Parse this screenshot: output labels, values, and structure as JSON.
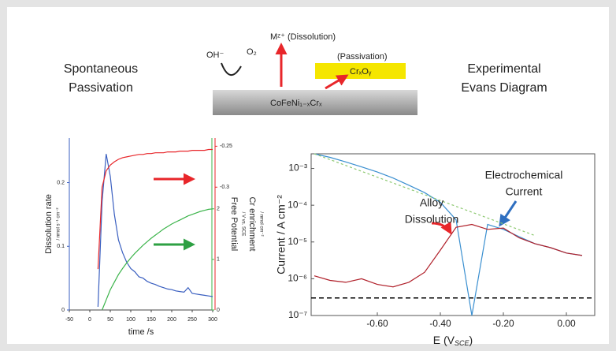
{
  "header": {
    "left_title": [
      "Spontaneous",
      "Passivation"
    ],
    "right_title": [
      "Experimental",
      "Evans Diagram"
    ]
  },
  "diagram": {
    "hydroxide": "OH⁻",
    "oxygen": "O₂",
    "dissolution": "Mᶻ⁺ (Dissolution)",
    "passivation": "(Passivation)",
    "oxide": "CrₓOᵧ",
    "alloy": "CoFeNi₁₋ₓCrₓ"
  },
  "chart_data": [
    {
      "type": "line",
      "xlabel": "time /s",
      "ylabel": "Dissolution rate",
      "ylabel_unit": "/ nmol s⁻¹ cm⁻²",
      "y2label": "Free Potential",
      "y2label_unit": "/ V vs. SCE",
      "y3label": "Cr enrichment",
      "y3label_unit": "/ nmol cm⁻²",
      "xlim": [
        -50,
        300
      ],
      "xticks": [
        -50,
        0,
        50,
        100,
        150,
        200,
        250,
        300
      ],
      "ylim": [
        0,
        0.27
      ],
      "yticks": [
        0,
        0.1,
        0.2
      ],
      "y2lim": [
        -0.45,
        -0.24
      ],
      "y2ticks": [
        -0.3,
        -0.25
      ],
      "y3lim": [
        0,
        3.4
      ],
      "y3ticks": [
        0,
        1,
        2
      ],
      "x": [
        -50,
        -40,
        -30,
        -20,
        -10,
        0,
        10,
        20,
        30,
        40,
        50,
        60,
        70,
        80,
        90,
        100,
        110,
        120,
        130,
        140,
        150,
        160,
        170,
        180,
        190,
        200,
        210,
        220,
        230,
        240,
        250,
        260,
        270,
        280,
        290,
        300
      ],
      "series": [
        {
          "axis": "y",
          "color": "#3a5fc0",
          "values": [
            null,
            null,
            null,
            null,
            null,
            null,
            null,
            0.005,
            0.17,
            0.245,
            0.21,
            0.15,
            0.11,
            0.09,
            0.075,
            0.065,
            0.06,
            0.052,
            0.05,
            0.045,
            0.042,
            0.04,
            0.037,
            0.035,
            0.033,
            0.032,
            0.03,
            0.029,
            0.028,
            0.035,
            0.026,
            0.025,
            0.024,
            0.023,
            0.022,
            0.021
          ]
        },
        {
          "axis": "y2",
          "color": "#e8262a",
          "values": [
            null,
            null,
            null,
            null,
            null,
            null,
            null,
            -0.4,
            -0.3,
            -0.28,
            -0.273,
            -0.269,
            -0.266,
            -0.264,
            -0.263,
            -0.262,
            -0.261,
            -0.26,
            -0.26,
            -0.259,
            -0.259,
            -0.258,
            -0.258,
            -0.258,
            -0.257,
            -0.257,
            -0.257,
            -0.256,
            -0.256,
            -0.256,
            -0.255,
            -0.255,
            -0.255,
            -0.255,
            -0.254,
            -0.254
          ]
        },
        {
          "axis": "y3",
          "color": "#3cb44b",
          "values": [
            null,
            null,
            null,
            null,
            null,
            null,
            null,
            null,
            0,
            0.2,
            0.4,
            0.55,
            0.7,
            0.82,
            0.93,
            1.03,
            1.12,
            1.2,
            1.28,
            1.35,
            1.42,
            1.48,
            1.54,
            1.6,
            1.65,
            1.7,
            1.74,
            1.78,
            1.82,
            1.86,
            1.89,
            1.92,
            1.95,
            1.97,
            1.99,
            2.0
          ]
        }
      ]
    },
    {
      "type": "line",
      "log_y": true,
      "xlabel_parts": [
        "E (V",
        "SCE",
        ")"
      ],
      "ylabel": "Current / A cm⁻²",
      "xlim": [
        -0.81,
        0.09
      ],
      "xticks": [
        {
          "value": -0.6,
          "label": "-0.60"
        },
        {
          "value": -0.4,
          "label": "-0.40"
        },
        {
          "value": -0.2,
          "label": "-0.20"
        },
        {
          "value": 0,
          "label": "0.00"
        }
      ],
      "ylim": [
        1e-07,
        0.0025
      ],
      "yticks": [
        {
          "value": 1e-07,
          "label": "10⁻⁷"
        },
        {
          "value": 1e-06,
          "label": "10⁻⁶"
        },
        {
          "value": 1e-05,
          "label": "10⁻⁵"
        },
        {
          "value": 0.0001,
          "label": "10⁻⁴"
        },
        {
          "value": 0.001,
          "label": "10⁻³"
        }
      ],
      "x": [
        -0.8,
        -0.75,
        -0.7,
        -0.65,
        -0.6,
        -0.55,
        -0.5,
        -0.45,
        -0.4,
        -0.35,
        -0.3,
        -0.25,
        -0.2,
        -0.15,
        -0.1,
        -0.05,
        0,
        0.05
      ],
      "series": [
        {
          "color": "#3a8fd0",
          "values": [
            0.0025,
            0.002,
            0.0015,
            0.0011,
            0.0008,
            0.00055,
            0.00035,
            0.00022,
            0.00012,
            4e-05,
            1e-07,
            3e-05,
            2.2e-05,
            1.4e-05,
            9e-06,
            7e-06,
            5e-06,
            4.3e-06
          ]
        },
        {
          "color": "#b0202a",
          "values": [
            1.2e-06,
            9e-07,
            8e-07,
            1e-06,
            7e-07,
            6e-07,
            8e-07,
            1.5e-06,
            6e-06,
            2.5e-05,
            3e-05,
            2.2e-05,
            2.4e-05,
            1.3e-05,
            9e-06,
            7e-06,
            5e-06,
            4.3e-06
          ]
        },
        {
          "color": "#8cc870",
          "dashed": true,
          "x": [
            -0.8,
            -0.1
          ],
          "values": [
            0.0025,
            1.5e-05
          ]
        }
      ],
      "hline": {
        "value": 3e-07,
        "color": "#000000"
      },
      "annotations": [
        {
          "lines": [
            "Electrochemical",
            "Current"
          ],
          "color": "#2f86cc"
        },
        {
          "lines": [
            "Alloy",
            "Dissolution"
          ],
          "color": "#c0202a"
        }
      ]
    }
  ]
}
